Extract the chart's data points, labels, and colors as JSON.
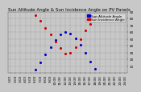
{
  "title": "Sun Altitude Angle & Sun Incidence Angle on PV Panels",
  "bg_color": "#c8c8c8",
  "plot_bg": "#c8c8c8",
  "grid_color": "#888888",
  "blue_color": "#0000cc",
  "red_color": "#cc0000",
  "legend_label_alt": "Sun Altitude Angle",
  "legend_label_inc": "Sun Incidence Angle",
  "ylim": [
    0,
    90
  ],
  "ylabel_ticks": [
    10,
    20,
    30,
    40,
    50,
    60,
    70,
    80,
    90
  ],
  "x_labels": [
    "1:00",
    "2:00",
    "3:00",
    "4:00",
    "5:00",
    "6:00",
    "7:00",
    "8:00",
    "9:00",
    "10:00",
    "11:00",
    "12:00",
    "13:00",
    "14:00",
    "15:00",
    "16:00",
    "17:00",
    "18:00",
    "19:00",
    "20:00",
    "21:00",
    "22:00",
    "23:00",
    "24:00"
  ],
  "x_vals": [
    1,
    2,
    3,
    4,
    5,
    6,
    7,
    8,
    9,
    10,
    11,
    12,
    13,
    14,
    15,
    16,
    17,
    18,
    19,
    20,
    21,
    22,
    23,
    24
  ],
  "sun_altitude": [
    0,
    0,
    0,
    0,
    0,
    5,
    15,
    27,
    38,
    48,
    56,
    60,
    58,
    51,
    41,
    29,
    17,
    6,
    0,
    0,
    0,
    0,
    0,
    0
  ],
  "sun_incidence": [
    0,
    0,
    0,
    0,
    0,
    85,
    76,
    66,
    56,
    46,
    36,
    28,
    30,
    38,
    50,
    62,
    72,
    82,
    0,
    0,
    0,
    0,
    0,
    0
  ],
  "title_fontsize": 4,
  "tick_fontsize": 3,
  "legend_fontsize": 3,
  "marker_size": 1.5
}
